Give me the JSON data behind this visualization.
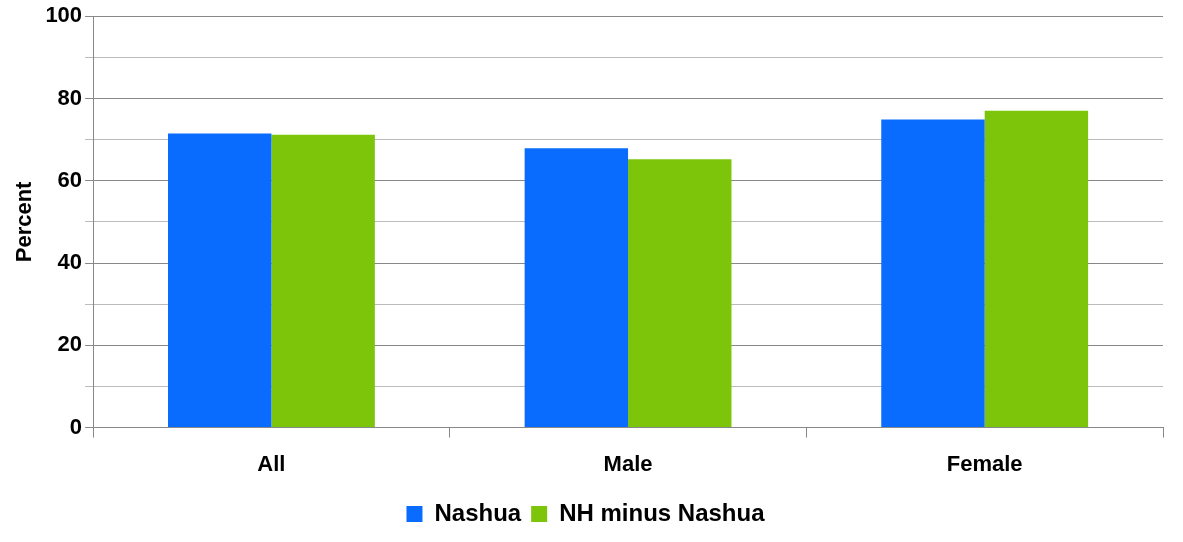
{
  "chart_data": {
    "type": "bar",
    "ylabel": "Percent",
    "categories": [
      "All",
      "Male",
      "Female"
    ],
    "series": [
      {
        "name": "Nashua",
        "color": "#0a6cff",
        "values": [
          71.5,
          67.9,
          74.9
        ]
      },
      {
        "name": "NH minus Nashua",
        "color": "#7dc50a",
        "values": [
          71.2,
          65.2,
          77.0
        ]
      }
    ],
    "ylim": [
      0,
      100
    ],
    "yticks": [
      0,
      {
        "value": 10,
        "label": null
      },
      20,
      {
        "value": 30,
        "label": null
      },
      40,
      {
        "value": 50,
        "label": null
      },
      60,
      {
        "value": 70,
        "label": null
      },
      80,
      {
        "value": 90,
        "label": null
      },
      100
    ],
    "grid": true,
    "legend": "bottom"
  }
}
